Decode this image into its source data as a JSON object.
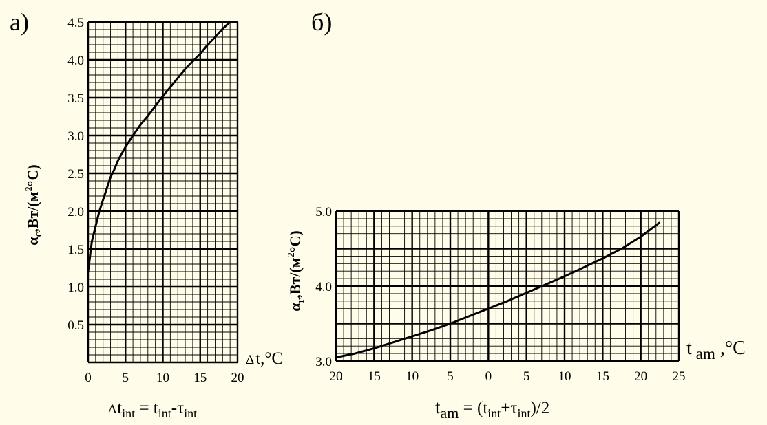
{
  "figure": {
    "background": "#FFFDE9",
    "line_color": "#000000"
  },
  "chart_data": [
    {
      "type": "line",
      "panel_label": "а)",
      "ylabel": {
        "symbol": "α",
        "sub": "c",
        "unit_pre": ",Вт/(м",
        "sup": "2",
        "unit_post": "°C)"
      },
      "x_unit_label": {
        "pre": "Δ",
        "main": "t,°C"
      },
      "x_title": {
        "pre": "Δ",
        "t1": "t",
        "s1": "int",
        "eq": " = ",
        "t2": "t",
        "s2": "int",
        "dash": "-",
        "t3": "τ",
        "s3": "int"
      },
      "xlim": [
        0,
        20
      ],
      "ylim": [
        0,
        4.5
      ],
      "x_ticks": [
        0,
        5,
        10,
        15,
        20
      ],
      "x_tick_labels": [
        "0",
        "5",
        "10",
        "15",
        "20"
      ],
      "y_ticks": [
        0.5,
        1.0,
        1.5,
        2.0,
        2.5,
        3.0,
        3.5,
        4.0,
        4.5
      ],
      "y_tick_labels": [
        "0.5",
        "1.0",
        "1.5",
        "2.0",
        "2.5",
        "3.0",
        "3.5",
        "4.0",
        "4.5"
      ],
      "grid": true,
      "series": [
        {
          "x": [
            0,
            0.5,
            1,
            1.5,
            2,
            2.5,
            3,
            3.5,
            4,
            5,
            6,
            7,
            8,
            9,
            10,
            11,
            12,
            13,
            14,
            15,
            16,
            17,
            18,
            19
          ],
          "y": [
            1.2,
            1.6,
            1.8,
            2.0,
            2.15,
            2.3,
            2.45,
            2.55,
            2.67,
            2.85,
            3.0,
            3.14,
            3.26,
            3.39,
            3.52,
            3.64,
            3.76,
            3.88,
            3.98,
            4.08,
            4.2,
            4.3,
            4.41,
            4.5
          ]
        }
      ]
    },
    {
      "type": "line",
      "panel_label": "б)",
      "ylabel": {
        "symbol": "α",
        "sub": "r",
        "unit_pre": ",Вт/(м",
        "sup": "2",
        "unit_post": "°C)"
      },
      "x_unit_label": {
        "t": "t",
        "sub": "am",
        "unit": " ,°C"
      },
      "x_title": {
        "t1": "t",
        "s1": "am",
        "eq": " = (",
        "t2": "t",
        "s2": "int",
        "plus": "+",
        "t3": "τ",
        "s3": "int",
        "end": ")/2"
      },
      "xlim": [
        -20,
        25
      ],
      "ylim": [
        3.0,
        5.0
      ],
      "x_ticks": [
        -20,
        -15,
        -10,
        -5,
        0,
        5,
        10,
        15,
        20,
        25
      ],
      "x_tick_labels": [
        "20",
        "15",
        "10",
        "5",
        "0",
        "5",
        "10",
        "15",
        "20",
        "25"
      ],
      "y_ticks": [
        3.0,
        4.0,
        5.0
      ],
      "y_tick_labels": [
        "3.0",
        "4.0",
        "5.0"
      ],
      "grid": true,
      "series": [
        {
          "x": [
            -20,
            -17.5,
            -15,
            -12.5,
            -10,
            -7.5,
            -5,
            -2.5,
            0,
            2.5,
            5,
            7.5,
            10,
            12.5,
            15,
            17.5,
            20,
            22.5
          ],
          "y": [
            3.05,
            3.1,
            3.17,
            3.25,
            3.33,
            3.41,
            3.5,
            3.6,
            3.7,
            3.8,
            3.91,
            4.02,
            4.13,
            4.25,
            4.37,
            4.5,
            4.66,
            4.85
          ]
        }
      ]
    }
  ]
}
